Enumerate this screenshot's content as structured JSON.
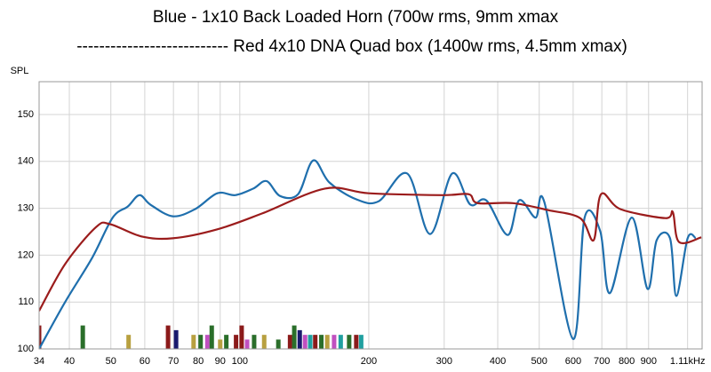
{
  "chart_data": {
    "type": "line",
    "title": "Blue - 1x10 Back Loaded Horn (700w rms, 9mm xmax",
    "subtitle": "--------------------------- Red 4x10 DNA Quad box (1400w rms, 4.5mm xmax)",
    "y_label": "SPL",
    "log_x": true,
    "grid": true,
    "xlim": [
      34,
      1200
    ],
    "ylim": [
      100,
      157
    ],
    "xticks": [
      34,
      40,
      50,
      60,
      70,
      80,
      90,
      100,
      200,
      300,
      400,
      500,
      600,
      700,
      800,
      900,
      {
        "value": 1110,
        "label": "1.11kHz"
      }
    ],
    "yticks": [
      100,
      110,
      120,
      130,
      140,
      150
    ],
    "series": [
      {
        "color": "#1f6fad",
        "x": [
          34,
          39.1,
          45.2,
          50.5,
          54.8,
          58.3,
          61.8,
          69.7,
          78.6,
          88.6,
          97.6,
          107.5,
          115.5,
          124.2,
          136.8,
          148.4,
          161.8,
          187,
          211,
          246,
          278,
          313,
          345,
          376,
          422,
          449,
          490,
          514,
          600,
          638,
          694,
          731,
          822,
          895,
          940,
          1010,
          1045,
          1110,
          1160
        ],
        "values": [
          100,
          110,
          119.4,
          128,
          130.4,
          132.8,
          130.8,
          128.3,
          129.8,
          133.2,
          132.8,
          134.2,
          135.8,
          132.6,
          133,
          140.2,
          135.5,
          131.9,
          131.5,
          137.4,
          124.5,
          137.4,
          130.8,
          131.7,
          124.3,
          131.7,
          128,
          131.3,
          102.1,
          128,
          125.1,
          111.9,
          128,
          112.8,
          123.2,
          123.6,
          111.3,
          123.6,
          123.6
        ]
      },
      {
        "color": "#9b1c1c",
        "x": [
          34,
          39.1,
          46.2,
          49.8,
          58.9,
          69.7,
          88.6,
          112.8,
          158,
          200,
          296,
          342,
          359,
          434,
          525,
          623,
          670,
          697,
          774,
          985,
          1025,
          1060,
          1195
        ],
        "values": [
          108.1,
          118.1,
          126,
          126.6,
          124,
          123.6,
          125.5,
          128.9,
          134.2,
          133.2,
          132.8,
          133,
          131.1,
          131.1,
          129.6,
          127.9,
          123.2,
          133,
          129.8,
          127.9,
          129.2,
          122.8,
          123.8
        ]
      }
    ],
    "bars": {
      "x": [
        34,
        43,
        55,
        68,
        71,
        78,
        81,
        84,
        86,
        90,
        93,
        98,
        101,
        104,
        108,
        114,
        123,
        131,
        134,
        138,
        142,
        146,
        150,
        155,
        160,
        166,
        172,
        180,
        187,
        192
      ],
      "values": [
        105,
        105,
        103,
        105,
        104,
        103,
        103,
        103,
        105,
        102,
        103,
        103,
        105,
        102,
        103,
        103,
        102,
        103,
        105,
        104,
        103,
        103,
        103,
        103,
        103,
        103,
        103,
        103,
        103,
        103
      ],
      "colors": [
        "#8b1a1a",
        "#2a6e2a",
        "#b8a040",
        "#8b1a1a",
        "#1a1a6e",
        "#b8a040",
        "#2a6e2a",
        "#c050c0",
        "#2a6e2a",
        "#b8a040",
        "#2a6e2a",
        "#8b1a1a",
        "#8b1a1a",
        "#c050c0",
        "#2a6e2a",
        "#b8a040",
        "#2a6e2a",
        "#8b1a1a",
        "#2a6e2a",
        "#1a1a6e",
        "#c050c0",
        "#20a0a0",
        "#8b1a1a",
        "#2a6e2a",
        "#b8a040",
        "#c050c0",
        "#20a0a0",
        "#2a6e2a",
        "#8b1a1a",
        "#20a0a0"
      ]
    }
  }
}
